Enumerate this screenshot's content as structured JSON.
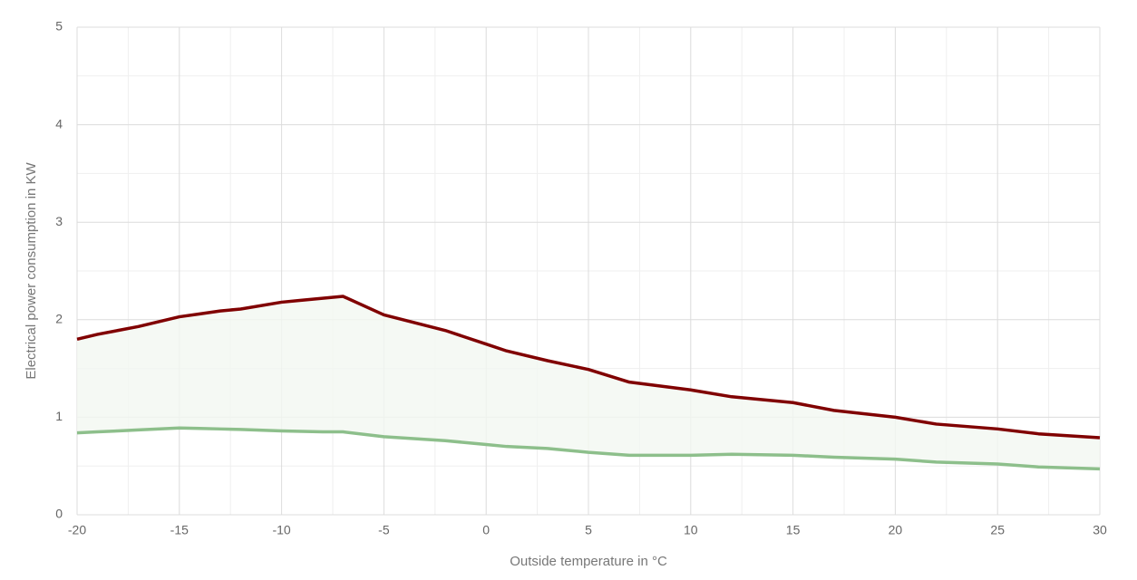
{
  "chart_data": {
    "type": "line",
    "x_label": "Outside temperature in °C",
    "y_label": "Electrical power consumption in KW",
    "x": [
      -20,
      -19,
      -18,
      -17,
      -15,
      -14,
      -13,
      -12,
      -10,
      -9,
      -8,
      -7,
      -5,
      -2,
      0,
      1,
      3,
      5,
      7,
      10,
      12,
      15,
      17,
      20,
      22,
      25,
      27,
      30
    ],
    "series": [
      {
        "color": "#800000",
        "values": [
          1.8,
          1.85,
          1.89,
          1.93,
          2.03,
          2.06,
          2.09,
          2.11,
          2.18,
          2.2,
          2.22,
          2.24,
          2.05,
          1.89,
          1.75,
          1.68,
          1.58,
          1.49,
          1.36,
          1.28,
          1.21,
          1.15,
          1.07,
          1.0,
          0.93,
          0.88,
          0.83,
          0.79
        ]
      },
      {
        "color": "#8dbf8b",
        "values": [
          0.84,
          0.85,
          0.86,
          0.87,
          0.89,
          0.885,
          0.88,
          0.875,
          0.86,
          0.855,
          0.85,
          0.85,
          0.8,
          0.76,
          0.72,
          0.7,
          0.68,
          0.64,
          0.61,
          0.61,
          0.62,
          0.61,
          0.59,
          0.57,
          0.54,
          0.52,
          0.49,
          0.47
        ]
      }
    ],
    "fill_between": true,
    "fill_color": "#f3f7f1",
    "xlim": [
      -20,
      30
    ],
    "xticks": [
      -20,
      -15,
      -10,
      -5,
      0,
      5,
      10,
      15,
      20,
      25,
      30
    ],
    "ylim": [
      0,
      5
    ],
    "yticks": [
      0,
      1,
      2,
      3,
      4,
      5
    ],
    "grid": true,
    "minor_grid": true
  }
}
